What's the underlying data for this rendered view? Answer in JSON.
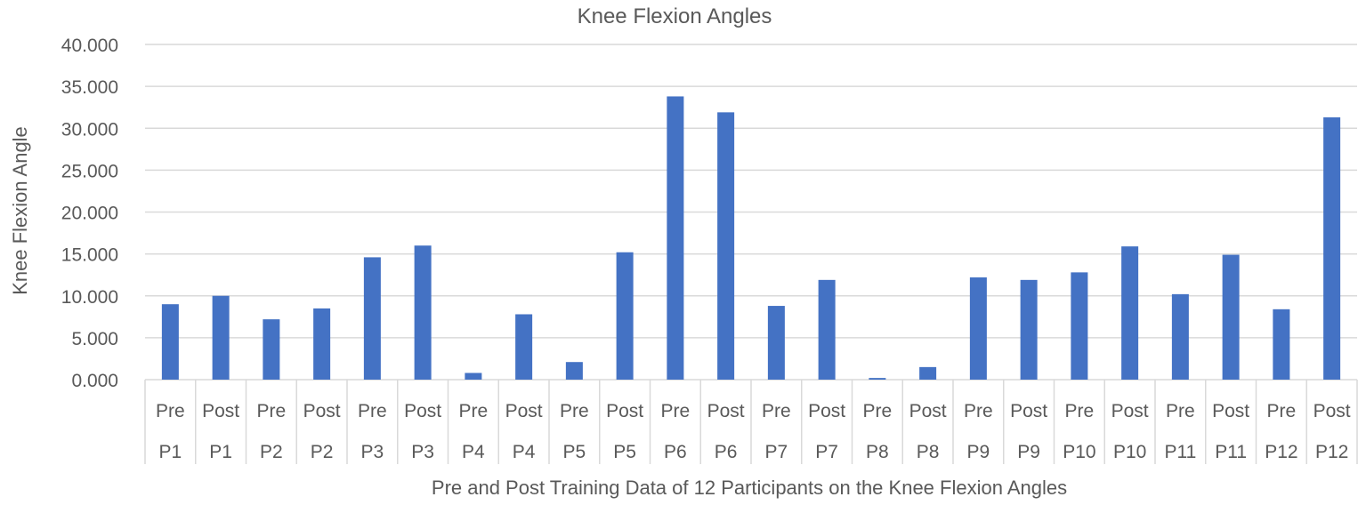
{
  "chart_data": {
    "type": "bar",
    "title": "Knee Flexion Angles",
    "xlabel": "Pre and Post Training Data of 12 Participants on the Knee Flexion Angles",
    "ylabel": "Knee Flexion Angle",
    "ylim": [
      0,
      40
    ],
    "yticks": [
      "0.000",
      "5.000",
      "10.000",
      "15.000",
      "20.000",
      "25.000",
      "30.000",
      "35.000",
      "40.000"
    ],
    "grid": true,
    "bar_color": "#4472C4",
    "groups": [
      "P1",
      "P2",
      "P3",
      "P4",
      "P5",
      "P6",
      "P7",
      "P8",
      "P9",
      "P10",
      "P11",
      "P12"
    ],
    "subcategories": [
      "Pre",
      "Post"
    ],
    "categories": [
      {
        "sub": "Pre",
        "group": "P1"
      },
      {
        "sub": "Post",
        "group": "P1"
      },
      {
        "sub": "Pre",
        "group": "P2"
      },
      {
        "sub": "Post",
        "group": "P2"
      },
      {
        "sub": "Pre",
        "group": "P3"
      },
      {
        "sub": "Post",
        "group": "P3"
      },
      {
        "sub": "Pre",
        "group": "P4"
      },
      {
        "sub": "Post",
        "group": "P4"
      },
      {
        "sub": "Pre",
        "group": "P5"
      },
      {
        "sub": "Post",
        "group": "P5"
      },
      {
        "sub": "Pre",
        "group": "P6"
      },
      {
        "sub": "Post",
        "group": "P6"
      },
      {
        "sub": "Pre",
        "group": "P7"
      },
      {
        "sub": "Post",
        "group": "P7"
      },
      {
        "sub": "Pre",
        "group": "P8"
      },
      {
        "sub": "Post",
        "group": "P8"
      },
      {
        "sub": "Pre",
        "group": "P9"
      },
      {
        "sub": "Post",
        "group": "P9"
      },
      {
        "sub": "Pre",
        "group": "P10"
      },
      {
        "sub": "Post",
        "group": "P10"
      },
      {
        "sub": "Pre",
        "group": "P11"
      },
      {
        "sub": "Post",
        "group": "P11"
      },
      {
        "sub": "Pre",
        "group": "P12"
      },
      {
        "sub": "Post",
        "group": "P12"
      }
    ],
    "values": [
      9.0,
      10.0,
      7.2,
      8.5,
      14.6,
      16.0,
      0.8,
      7.8,
      2.1,
      15.2,
      33.8,
      31.9,
      8.8,
      11.9,
      0.2,
      1.5,
      12.2,
      11.9,
      12.8,
      15.9,
      10.2,
      14.9,
      8.4,
      31.3
    ]
  }
}
